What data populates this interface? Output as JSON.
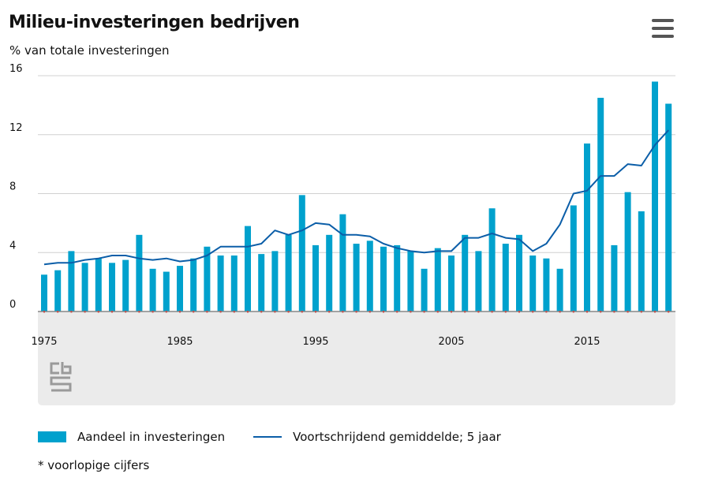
{
  "header": {
    "title": "Milieu-investeringen bedrijven",
    "subtitle": "% van totale investeringen",
    "menu_icon": "hamburger-menu-icon"
  },
  "legend": {
    "bar_label": "Aandeel in investeringen",
    "line_label": "Voortschrijdend gemiddelde; 5 jaar"
  },
  "footnote": "* voorlopige cijfers",
  "colors": {
    "bar": "#00a1cd",
    "line": "#0b5ea8",
    "footer_panel": "#ebebeb",
    "grid": "#d0d0d0"
  },
  "chart_data": {
    "type": "bar",
    "x": [
      1975,
      1976,
      1977,
      1978,
      1979,
      1980,
      1981,
      1982,
      1983,
      1984,
      1985,
      1986,
      1987,
      1988,
      1989,
      1990,
      1991,
      1992,
      1993,
      1994,
      1995,
      1996,
      1997,
      1998,
      1999,
      2000,
      2001,
      2002,
      2003,
      2004,
      2005,
      2006,
      2007,
      2008,
      2009,
      2010,
      2011,
      2012,
      2013,
      2014,
      2015,
      2016,
      2017,
      2018,
      2019,
      2020,
      2021
    ],
    "series": [
      {
        "name": "Aandeel in investeringen",
        "type": "bar",
        "values": [
          2.5,
          2.8,
          4.1,
          3.3,
          3.6,
          3.3,
          3.5,
          5.2,
          2.9,
          2.7,
          3.1,
          3.6,
          4.4,
          3.8,
          3.8,
          5.8,
          3.9,
          4.1,
          5.2,
          7.9,
          4.5,
          5.2,
          6.6,
          4.6,
          4.8,
          4.4,
          4.5,
          4.1,
          2.9,
          4.3,
          3.8,
          5.2,
          4.1,
          7.0,
          4.6,
          5.2,
          3.8,
          3.6,
          2.9,
          7.2,
          11.4,
          14.5,
          4.5,
          8.1,
          6.8,
          15.6,
          14.1
        ]
      },
      {
        "name": "Voortschrijdend gemiddelde; 5 jaar",
        "type": "line",
        "values": [
          3.2,
          3.3,
          3.3,
          3.5,
          3.6,
          3.8,
          3.8,
          3.6,
          3.5,
          3.6,
          3.4,
          3.5,
          3.8,
          4.4,
          4.4,
          4.4,
          4.6,
          5.5,
          5.2,
          5.5,
          6.0,
          5.9,
          5.2,
          5.2,
          5.1,
          4.6,
          4.3,
          4.1,
          4.0,
          4.1,
          4.1,
          5.0,
          5.0,
          5.3,
          5.0,
          4.9,
          4.1,
          4.6,
          5.9,
          8.0,
          8.2,
          9.2,
          9.2,
          10.0,
          9.9,
          11.3,
          12.3
        ]
      }
    ],
    "x_ticks": [
      "1975",
      "1985",
      "1995",
      "2005",
      "2015"
    ],
    "y_ticks": [
      0,
      4,
      8,
      12,
      16
    ],
    "ylim": [
      0,
      16
    ],
    "xlabel": "",
    "ylabel": "% van totale investeringen",
    "grid": true,
    "legend_position": "bottom",
    "logo": "cbs-logo"
  }
}
